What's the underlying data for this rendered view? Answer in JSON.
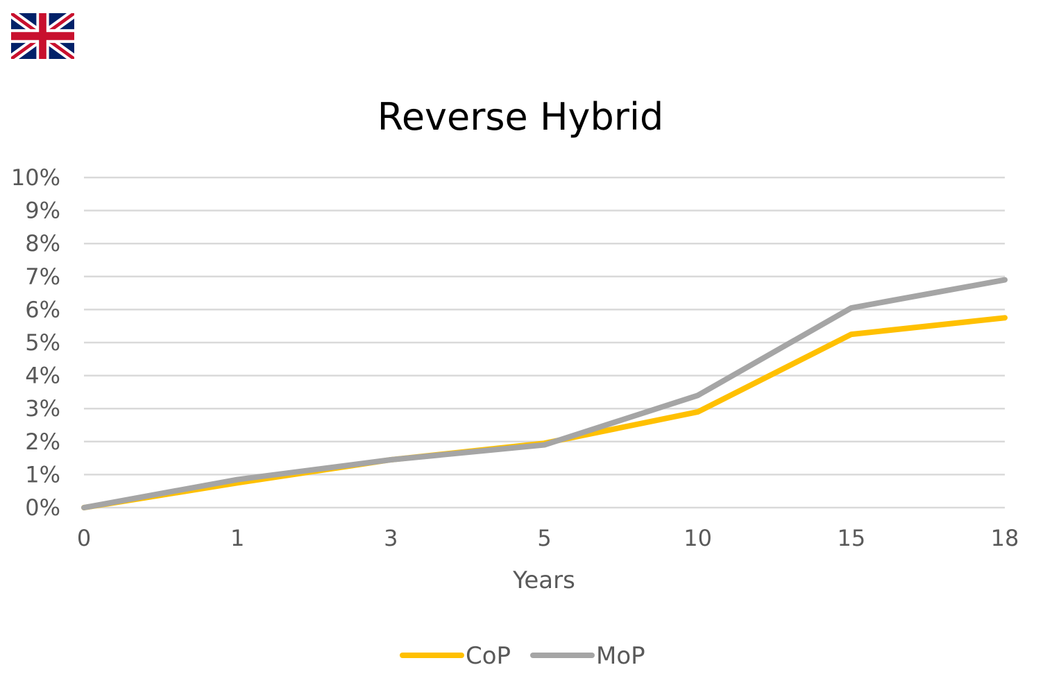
{
  "flag": {
    "icon": "uk-flag-icon"
  },
  "colors": {
    "cop": "#FFC000",
    "mop": "#A5A5A5",
    "grid": "#D9D9D9",
    "text": "#595959"
  },
  "chart_data": {
    "type": "line",
    "title": "Reverse Hybrid",
    "xlabel": "Years",
    "ylabel": "",
    "categories": [
      "0",
      "1",
      "3",
      "5",
      "10",
      "15",
      "18"
    ],
    "yticks": [
      "0%",
      "1%",
      "2%",
      "3%",
      "4%",
      "5%",
      "6%",
      "7%",
      "8%",
      "9%",
      "10%"
    ],
    "ylim": [
      0,
      10
    ],
    "grid": true,
    "legend": "bottom",
    "series": [
      {
        "name": "CoP",
        "values": [
          0,
          0.75,
          1.45,
          1.95,
          2.9,
          5.25,
          5.75
        ]
      },
      {
        "name": "MoP",
        "values": [
          0,
          0.85,
          1.45,
          1.9,
          3.4,
          6.05,
          6.9
        ]
      }
    ]
  }
}
